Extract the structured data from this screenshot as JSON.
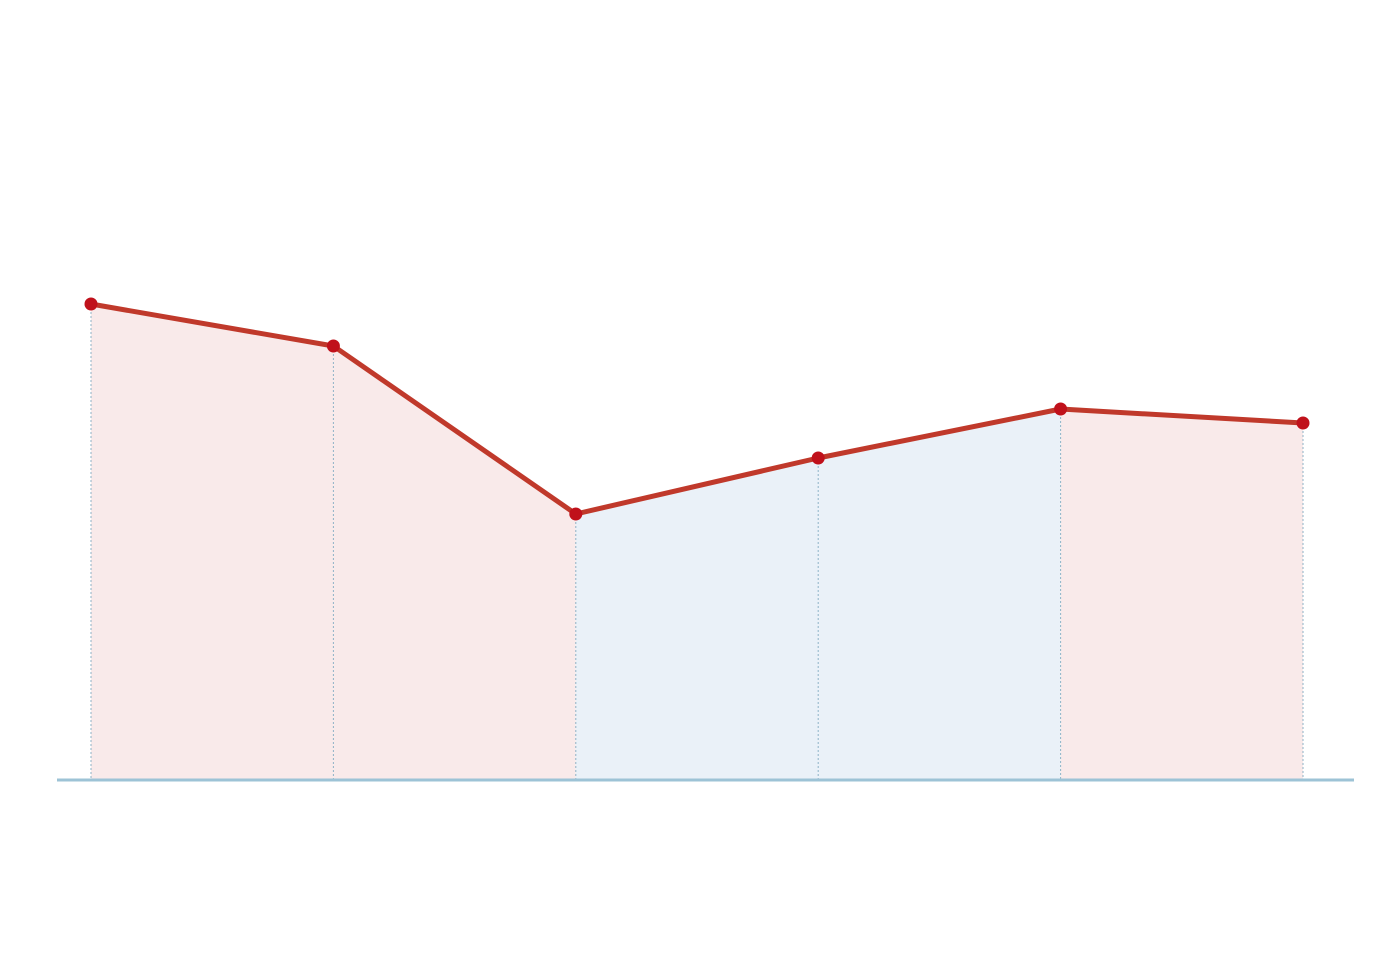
{
  "chart_data": {
    "type": "line",
    "categories": [
      null,
      null,
      null,
      null,
      null,
      null
    ],
    "values": [
      68,
      62,
      38,
      46,
      53,
      51
    ],
    "color": "#c0392b",
    "marker_color": "#c0111b",
    "rise_color": "#eaf1f8",
    "fall_color": "#f9eaea",
    "drop_line_color": "#8fb3c7",
    "baseline_color": "#9dc3d6",
    "ylim": [
      0,
      100
    ]
  }
}
